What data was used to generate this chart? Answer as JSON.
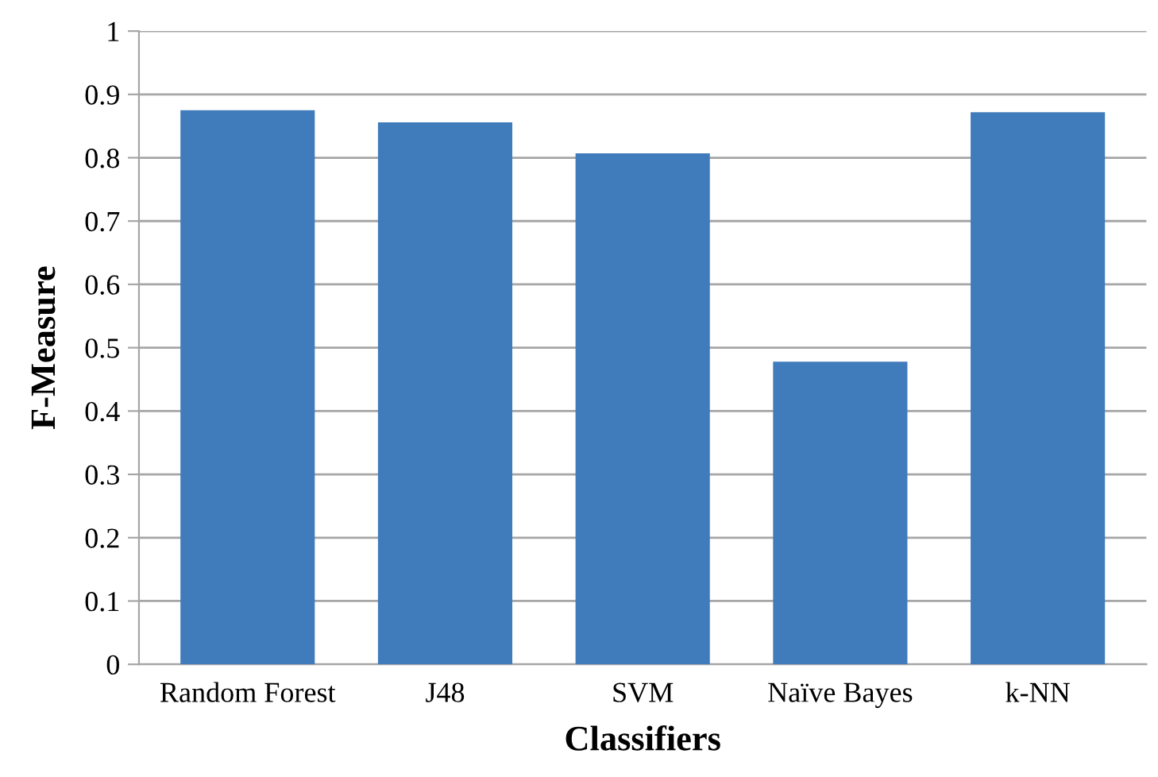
{
  "chart_data": {
    "type": "bar",
    "xlabel": "Classifiers",
    "ylabel": "F-Measure",
    "categories": [
      "Random Forest",
      "J48",
      "SVM",
      "Naïve Bayes",
      "k-NN"
    ],
    "values": [
      0.875,
      0.856,
      0.807,
      0.478,
      0.872
    ],
    "color": "#407bbb",
    "ylim": [
      0,
      1
    ],
    "yticks": [
      0,
      0.1,
      0.2,
      0.3,
      0.4,
      0.5,
      0.6,
      0.7,
      0.8,
      0.9,
      1
    ],
    "grid": "y",
    "legend": false
  }
}
